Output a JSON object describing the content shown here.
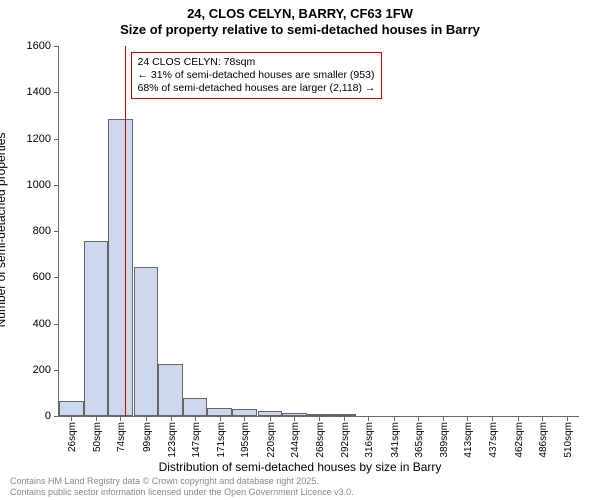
{
  "title": {
    "line1": "24, CLOS CELYN, BARRY, CF63 1FW",
    "line2": "Size of property relative to semi-detached houses in Barry"
  },
  "chart": {
    "type": "histogram",
    "x_min_sqm": 14,
    "x_max_sqm": 522,
    "ylim": [
      0,
      1600
    ],
    "ytick_step": 200,
    "yticks": [
      0,
      200,
      400,
      600,
      800,
      1000,
      1200,
      1400,
      1600
    ],
    "xticks_sqm": [
      26,
      50,
      74,
      99,
      123,
      147,
      171,
      195,
      220,
      244,
      268,
      292,
      316,
      341,
      365,
      389,
      413,
      437,
      462,
      486,
      510
    ],
    "bar_width_sqm": 24,
    "bars": [
      {
        "start_sqm": 14,
        "count": 65
      },
      {
        "start_sqm": 38,
        "count": 755
      },
      {
        "start_sqm": 62,
        "count": 1285
      },
      {
        "start_sqm": 87,
        "count": 645
      },
      {
        "start_sqm": 111,
        "count": 225
      },
      {
        "start_sqm": 135,
        "count": 80
      },
      {
        "start_sqm": 159,
        "count": 35
      },
      {
        "start_sqm": 183,
        "count": 30
      },
      {
        "start_sqm": 208,
        "count": 20
      },
      {
        "start_sqm": 232,
        "count": 15
      },
      {
        "start_sqm": 256,
        "count": 10
      },
      {
        "start_sqm": 280,
        "count": 5
      },
      {
        "start_sqm": 304,
        "count": 0
      },
      {
        "start_sqm": 329,
        "count": 0
      },
      {
        "start_sqm": 353,
        "count": 0
      },
      {
        "start_sqm": 377,
        "count": 0
      },
      {
        "start_sqm": 401,
        "count": 0
      },
      {
        "start_sqm": 425,
        "count": 0
      },
      {
        "start_sqm": 450,
        "count": 0
      },
      {
        "start_sqm": 474,
        "count": 0
      },
      {
        "start_sqm": 498,
        "count": 0
      }
    ],
    "bar_fill_color": "#cbd8ee",
    "bar_border_color": "#666666",
    "marker_line": {
      "sqm": 78,
      "color": "#cc0000"
    },
    "background_color": "#ffffff",
    "axis_color": "#666666",
    "tick_fontsize": 11,
    "label_fontsize": 12,
    "xtick_suffix": "sqm"
  },
  "annotation": {
    "line1": "24 CLOS CELYN: 78sqm",
    "line2": "← 31% of semi-detached houses are smaller (953)",
    "line3": "68% of semi-detached houses are larger (2,118) →",
    "border_color": "#cc0000",
    "bg_color": "#ffffff"
  },
  "axes": {
    "ylabel": "Number of semi-detached properties",
    "xlabel": "Distribution of semi-detached houses by size in Barry"
  },
  "footnote": {
    "line1": "Contains HM Land Registry data © Crown copyright and database right 2025.",
    "line2": "Contains public sector information licensed under the Open Government Licence v3.0."
  }
}
